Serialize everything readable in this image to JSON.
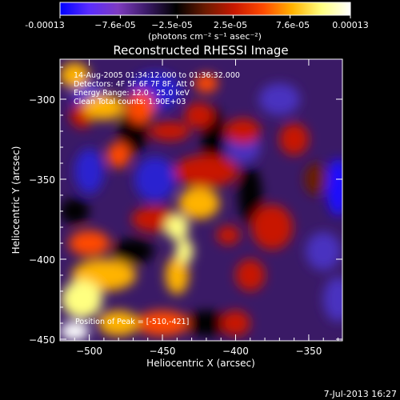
{
  "colorbar": {
    "ticks": [
      "-0.00013",
      "−7.6e-05",
      "−2.5e-05",
      "2.5e-05",
      "7.6e-05",
      "0.00013"
    ],
    "unit_label": "(photons cm⁻² s⁻¹ asec⁻²)",
    "colors": [
      "#0000ff",
      "#5a2cff",
      "#7e3bbf",
      "#3a1a66",
      "#000000",
      "#6b1a00",
      "#c81800",
      "#ff4a00",
      "#ffb300",
      "#ffff80",
      "#ffffff"
    ]
  },
  "overlay": {
    "lines": [
      "14‑Aug‑2005 01:34:12.000 to 01:36:32.000",
      "Detectors: 4F 5F 6F 7F 8F, Att 0",
      "Energy Range: 12.0 ‑ 25.0 keV",
      "Clean     Total counts: 1.90E+03"
    ],
    "peak": "Position of Peak = [‑510,‑421]"
  },
  "footer": {
    "date": "7‑Jul‑2013 16:27"
  },
  "chart_data": {
    "type": "heatmap",
    "title": "Reconstructed RHESSI Image",
    "xlabel": "Heliocentric X (arcsec)",
    "ylabel": "Heliocentric Y (arcsec)",
    "xlim": [
      -520,
      -327
    ],
    "ylim": [
      -451,
      -275
    ],
    "xticks": [
      -500,
      -450,
      -400,
      -350
    ],
    "yticks": [
      -300,
      -350,
      -400,
      -450
    ],
    "xtick_labels": [
      "−500",
      "−450",
      "−400",
      "−350"
    ],
    "ytick_labels": [
      "−300",
      "−350",
      "−400",
      "−450"
    ],
    "clim": [
      -0.00013,
      0.00013
    ],
    "peak": [
      -510,
      -421
    ]
  }
}
